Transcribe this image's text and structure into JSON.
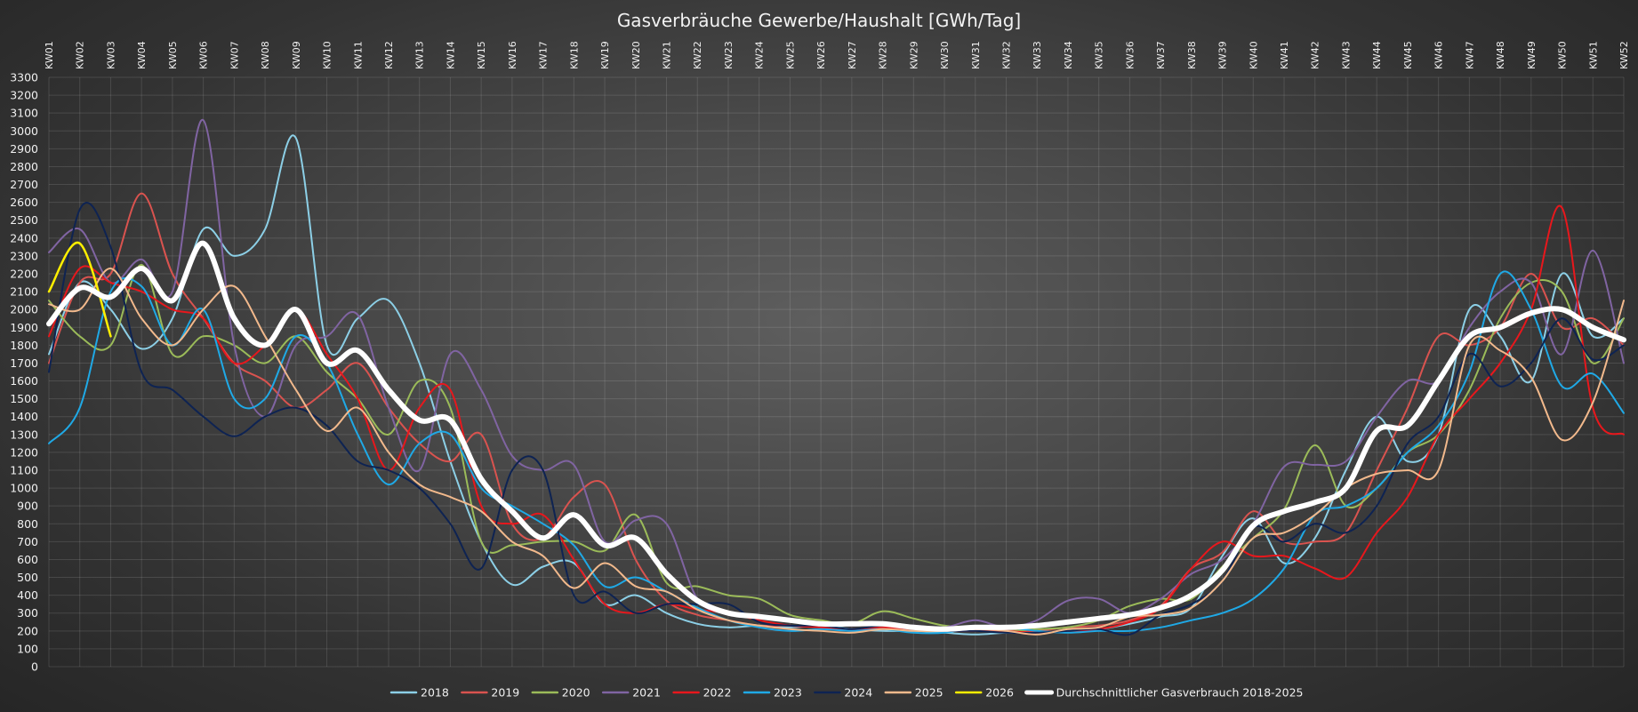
{
  "chart_data": {
    "type": "line",
    "title": "Gasverbräuche Gewerbe/Haushalt [GWh/Tag]",
    "ylim": [
      0,
      3300
    ],
    "y_tick_step": 100,
    "grid": true,
    "legend_position": "bottom",
    "x": [
      "KW01",
      "KW02",
      "KW03",
      "KW04",
      "KW05",
      "KW06",
      "KW07",
      "KW08",
      "KW09",
      "KW10",
      "KW11",
      "KW12",
      "KW13",
      "KW14",
      "KW15",
      "KW16",
      "KW17",
      "KW18",
      "KW19",
      "KW20",
      "KW21",
      "KW22",
      "KW23",
      "KW24",
      "KW25",
      "KW26",
      "KW27",
      "KW28",
      "KW29",
      "KW30",
      "KW31",
      "KW32",
      "KW33",
      "KW34",
      "KW35",
      "KW36",
      "KW37",
      "KW38",
      "KW39",
      "KW40",
      "KW41",
      "KW42",
      "KW43",
      "KW44",
      "KW45",
      "KW46",
      "KW47",
      "KW48",
      "KW49",
      "KW50",
      "KW51",
      "KW52"
    ],
    "series": [
      {
        "name": "2018",
        "color": "#8ccfe6",
        "width": 2,
        "values": [
          1750,
          2150,
          2000,
          1780,
          1950,
          2450,
          2300,
          2450,
          2960,
          1800,
          1950,
          2050,
          1700,
          1150,
          700,
          460,
          560,
          580,
          350,
          400,
          300,
          240,
          220,
          230,
          220,
          230,
          210,
          200,
          200,
          190,
          180,
          190,
          190,
          200,
          210,
          240,
          280,
          330,
          620,
          830,
          580,
          720,
          1100,
          1400,
          1150,
          1300,
          2000,
          1850,
          1600,
          2200,
          1850,
          1950
        ]
      },
      {
        "name": "2019",
        "color": "#d9534f",
        "width": 2,
        "values": [
          1700,
          2150,
          2200,
          2650,
          2200,
          1950,
          1700,
          1600,
          1450,
          1550,
          1700,
          1450,
          1250,
          1150,
          1300,
          800,
          720,
          950,
          1020,
          600,
          370,
          290,
          260,
          230,
          230,
          220,
          210,
          210,
          210,
          200,
          200,
          200,
          200,
          220,
          230,
          260,
          340,
          550,
          640,
          870,
          700,
          700,
          750,
          1100,
          1450,
          1850,
          1800,
          1900,
          2200,
          1900,
          1950,
          1800
        ]
      },
      {
        "name": "2020",
        "color": "#9bbb59",
        "width": 2,
        "values": [
          2050,
          1850,
          1800,
          2250,
          1750,
          1850,
          1800,
          1700,
          1850,
          1650,
          1500,
          1300,
          1600,
          1450,
          700,
          680,
          700,
          700,
          650,
          850,
          470,
          450,
          400,
          380,
          290,
          260,
          240,
          310,
          270,
          230,
          220,
          200,
          210,
          220,
          260,
          340,
          380,
          380,
          560,
          720,
          880,
          1240,
          900,
          1000,
          1200,
          1300,
          1550,
          1950,
          2150,
          2100,
          1700,
          1950
        ]
      },
      {
        "name": "2021",
        "color": "#8064a2",
        "width": 2,
        "values": [
          2320,
          2450,
          2150,
          2280,
          2100,
          3060,
          1800,
          1400,
          1800,
          1850,
          1970,
          1450,
          1100,
          1750,
          1550,
          1180,
          1100,
          1130,
          700,
          820,
          800,
          380,
          300,
          280,
          270,
          240,
          230,
          240,
          230,
          220,
          260,
          220,
          260,
          370,
          380,
          300,
          380,
          520,
          600,
          800,
          1120,
          1130,
          1150,
          1400,
          1600,
          1600,
          1900,
          2100,
          2150,
          1750,
          2330,
          1700
        ]
      },
      {
        "name": "2022",
        "color": "#e8171c",
        "width": 2,
        "values": [
          1850,
          2230,
          2150,
          2100,
          2000,
          1950,
          1700,
          1800,
          2000,
          1750,
          1500,
          1100,
          1450,
          1550,
          900,
          800,
          850,
          600,
          350,
          300,
          350,
          320,
          300,
          260,
          230,
          220,
          200,
          220,
          210,
          200,
          210,
          200,
          190,
          200,
          210,
          250,
          330,
          550,
          700,
          620,
          620,
          550,
          500,
          750,
          950,
          1300,
          1500,
          1700,
          2000,
          2570,
          1450,
          1300
        ]
      },
      {
        "name": "2023",
        "color": "#1fa9e6",
        "width": 2,
        "values": [
          1250,
          1450,
          2100,
          2130,
          1800,
          2000,
          1500,
          1500,
          1850,
          1700,
          1300,
          1020,
          1250,
          1300,
          1000,
          900,
          800,
          680,
          450,
          500,
          420,
          330,
          260,
          220,
          200,
          210,
          200,
          210,
          190,
          190,
          220,
          220,
          200,
          190,
          200,
          200,
          220,
          260,
          300,
          380,
          550,
          850,
          900,
          1000,
          1200,
          1350,
          1650,
          2200,
          2000,
          1570,
          1640,
          1420
        ]
      },
      {
        "name": "2024",
        "color": "#0e2352",
        "width": 2,
        "values": [
          1650,
          2560,
          2350,
          1650,
          1550,
          1400,
          1290,
          1400,
          1450,
          1350,
          1150,
          1100,
          1000,
          800,
          550,
          1100,
          1100,
          400,
          420,
          300,
          350,
          350,
          350,
          250,
          230,
          230,
          210,
          230,
          210,
          200,
          200,
          190,
          190,
          200,
          210,
          180,
          290,
          350,
          480,
          780,
          700,
          800,
          750,
          900,
          1250,
          1400,
          1750,
          1570,
          1700,
          1950,
          1720,
          1800
        ]
      },
      {
        "name": "2025",
        "color": "#f2b98c",
        "width": 2,
        "values": [
          2030,
          2000,
          2230,
          1950,
          1800,
          2000,
          2130,
          1850,
          1550,
          1320,
          1450,
          1200,
          1020,
          950,
          870,
          700,
          620,
          440,
          580,
          450,
          420,
          320,
          260,
          230,
          210,
          200,
          190,
          210,
          200,
          200,
          210,
          200,
          180,
          210,
          220,
          280,
          290,
          330,
          480,
          720,
          750,
          850,
          1000,
          1080,
          1100,
          1100,
          1800,
          1770,
          1620,
          1270,
          1480,
          2050
        ]
      },
      {
        "name": "2026",
        "color": "#ffef00",
        "width": 2.5,
        "values": [
          2100,
          2370,
          1850,
          null,
          null,
          null,
          null,
          null,
          null,
          null,
          null,
          null,
          null,
          null,
          null,
          null,
          null,
          null,
          null,
          null,
          null,
          null,
          null,
          null,
          null,
          null,
          null,
          null,
          null,
          null,
          null,
          null,
          null,
          null,
          null,
          null,
          null,
          null,
          null,
          null,
          null,
          null,
          null,
          null,
          null,
          null,
          null,
          null,
          null,
          null,
          null,
          null
        ]
      },
      {
        "name": "Durchschnittlicher Gasverbrauch 2018-2025",
        "color": "#ffffff",
        "width": 6,
        "values": [
          1920,
          2120,
          2070,
          2230,
          2050,
          2370,
          1950,
          1800,
          2000,
          1700,
          1770,
          1550,
          1380,
          1380,
          1050,
          870,
          720,
          850,
          680,
          720,
          520,
          370,
          300,
          280,
          260,
          240,
          240,
          240,
          220,
          210,
          220,
          220,
          230,
          250,
          270,
          290,
          330,
          400,
          540,
          790,
          870,
          920,
          1000,
          1320,
          1350,
          1600,
          1850,
          1900,
          1980,
          2000,
          1900,
          1830
        ]
      }
    ]
  }
}
